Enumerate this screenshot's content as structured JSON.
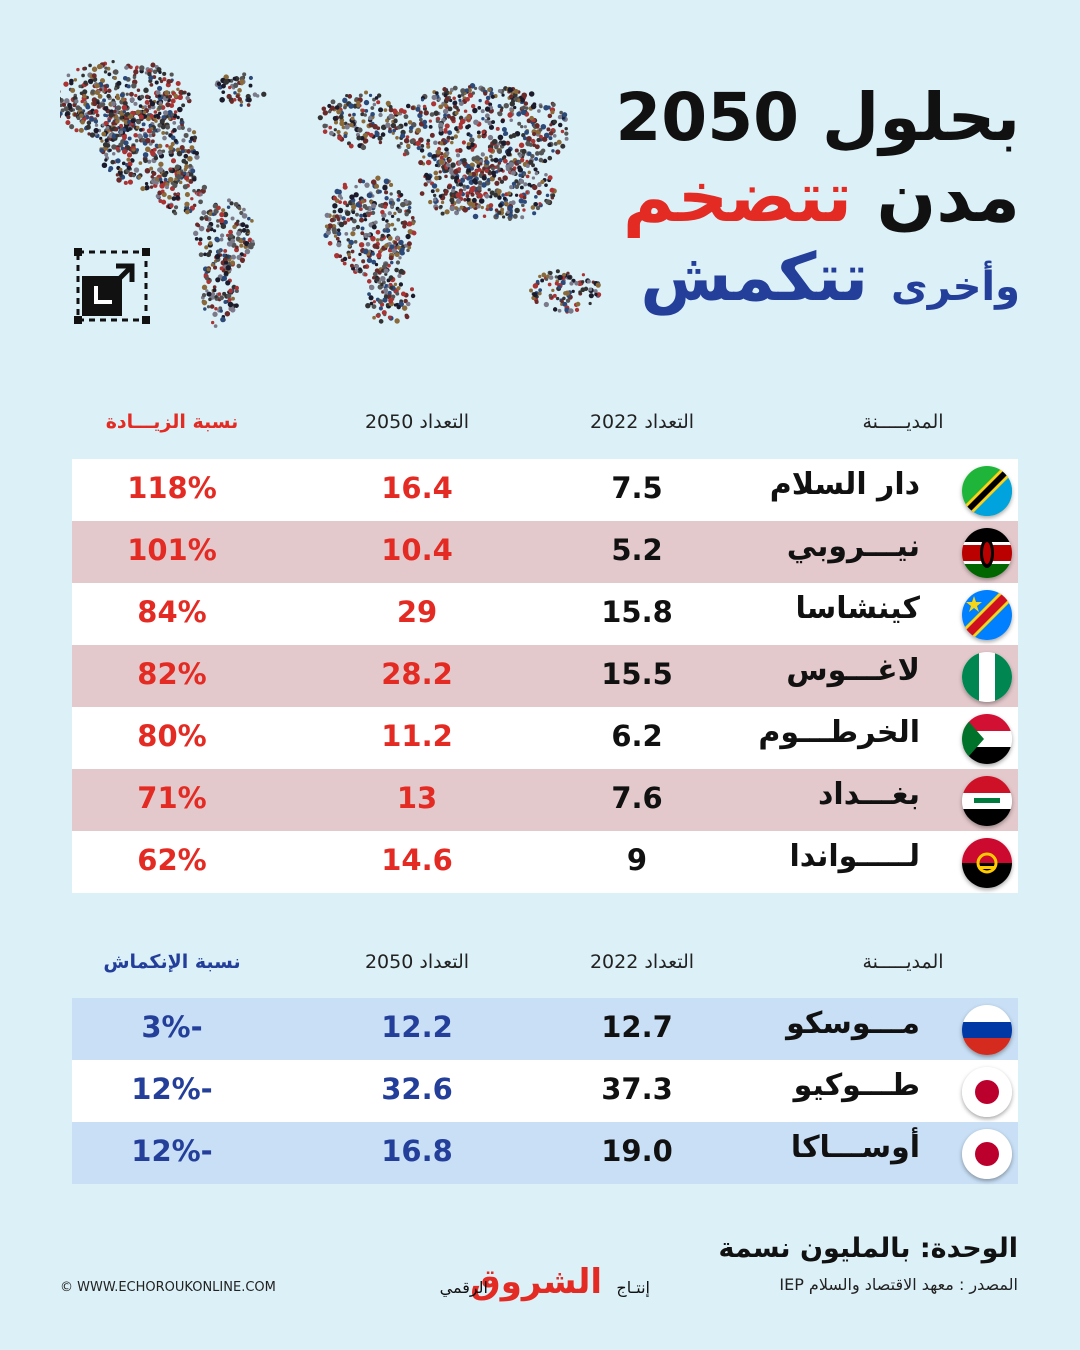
{
  "title": {
    "line1": "بحلول 2050",
    "line2_word1": "مدن",
    "line2_word2": "تتضخم",
    "line3_word1": "وأخرى",
    "line3_word2": "تتكمش"
  },
  "colors": {
    "background": "#dcf0f7",
    "growth_accent": "#e32b23",
    "shrink_accent": "#233f9a",
    "growth_alt_row": "#e4c9cc",
    "shrink_alt_row": "#c8dff5",
    "white_row": "#ffffff"
  },
  "icons": [
    "world-map-crowd-icon",
    "resize-arrow-icon"
  ],
  "chart_data": [
    {
      "type": "table",
      "columns": [
        "المديـــــنة",
        "التعداد 2022",
        "التعداد 2050",
        "نسبة الزيـــادة"
      ],
      "rows": [
        {
          "flag": "tanzania-flag-icon",
          "city": "دار السلام",
          "pop_2022": "7.5",
          "pop_2050": "16.4",
          "change": "118%"
        },
        {
          "flag": "kenya-flag-icon",
          "city": "نيـــروبي",
          "pop_2022": "5.2",
          "pop_2050": "10.4",
          "change": "101%"
        },
        {
          "flag": "drc-flag-icon",
          "city": "كينشاسا",
          "pop_2022": "15.8",
          "pop_2050": "29",
          "change": "84%"
        },
        {
          "flag": "nigeria-flag-icon",
          "city": "لاغـــوس",
          "pop_2022": "15.5",
          "pop_2050": "28.2",
          "change": "82%"
        },
        {
          "flag": "sudan-flag-icon",
          "city": "الخرطـــوم",
          "pop_2022": "6.2",
          "pop_2050": "11.2",
          "change": "80%"
        },
        {
          "flag": "iraq-flag-icon",
          "city": "بغـــداد",
          "pop_2022": "7.6",
          "pop_2050": "13",
          "change": "71%"
        },
        {
          "flag": "angola-flag-icon",
          "city": "لـــــواندا",
          "pop_2022": "9",
          "pop_2050": "14.6",
          "change": "62%"
        }
      ]
    },
    {
      "type": "table",
      "columns": [
        "المديـــــنة",
        "التعداد 2022",
        "التعداد 2050",
        "نسبة الإنكماش"
      ],
      "rows": [
        {
          "flag": "russia-flag-icon",
          "city": "مـــوسكو",
          "pop_2022": "12.7",
          "pop_2050": "12.2",
          "change": "3%-"
        },
        {
          "flag": "japan-flag-icon",
          "city": "طـــوكيو",
          "pop_2022": "37.3",
          "pop_2050": "32.6",
          "change": "12%-"
        },
        {
          "flag": "japan-flag-icon",
          "city": "أوســـاكا",
          "pop_2022": "19.0",
          "pop_2050": "16.8",
          "change": "12%-"
        }
      ]
    }
  ],
  "footer": {
    "unit": "الوحدة: بالمليون نسمة",
    "source": "المصدر : معهد الاقتصاد والسلام IEP",
    "brand_pre": "إنتـاج",
    "brand_logo": "الشروق",
    "brand_post": "الرقمي",
    "site": "© WWW.ECHOROUKONLINE.COM"
  }
}
